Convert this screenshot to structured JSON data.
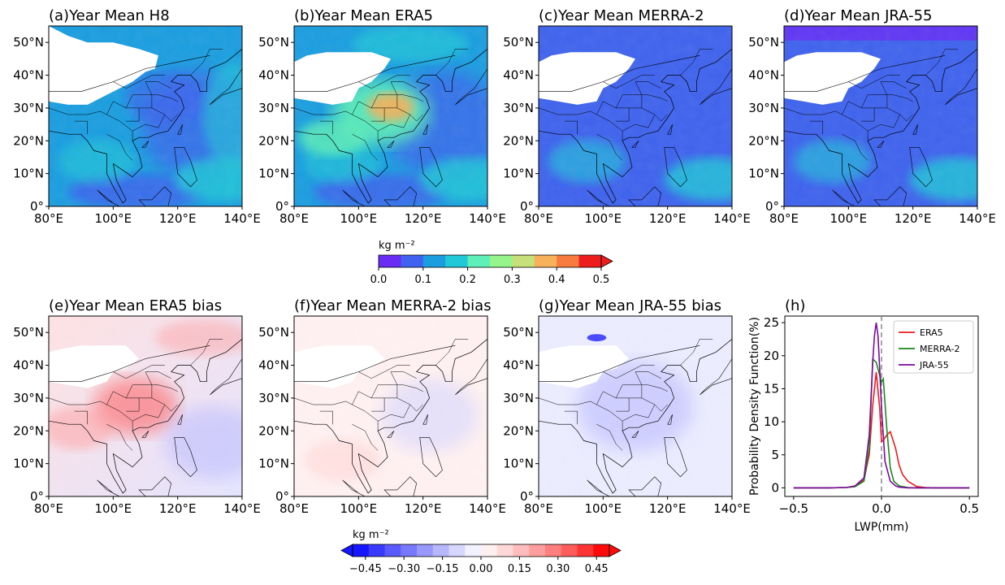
{
  "colors": {
    "lwp_levels": [
      "#6a2cf5",
      "#3f63ee",
      "#1b9ee0",
      "#22c8d8",
      "#5ef0b8",
      "#95f58c",
      "#c6e17a",
      "#f7b15a",
      "#f77a3e",
      "#ee1d1d"
    ],
    "bias_levels": [
      "#1616ff",
      "#3a3aff",
      "#5a5aff",
      "#7878ff",
      "#9898ff",
      "#b7b7ff",
      "#d6d6ff",
      "#f1f1ff",
      "#fff0f0",
      "#ffd8d8",
      "#ffbcbc",
      "#ff9e9e",
      "#ff7e7e",
      "#ff5c5c",
      "#ff3434",
      "#ff0a0a"
    ],
    "era5": "#ee1c1c",
    "merra2": "#1a8a1a",
    "jra55": "#7a0aa0"
  },
  "chart_data": [
    {
      "type": "heatmap",
      "panel": "a",
      "title": "(a)Year Mean H8",
      "xticks": [
        "80°E",
        "100°E",
        "120°E",
        "140°E"
      ],
      "yticks": [
        "0°",
        "10°N",
        "20°N",
        "30°N",
        "40°N",
        "50°N"
      ],
      "xlim": [
        80,
        140
      ],
      "ylim": [
        0,
        55
      ]
    },
    {
      "type": "heatmap",
      "panel": "b",
      "title": "(b)Year Mean ERA5",
      "xticks": [
        "80°E",
        "100°E",
        "120°E",
        "140°E"
      ],
      "yticks": [
        "0°",
        "10°N",
        "20°N",
        "30°N",
        "40°N",
        "50°N"
      ],
      "xlim": [
        80,
        140
      ],
      "ylim": [
        0,
        55
      ]
    },
    {
      "type": "heatmap",
      "panel": "c",
      "title": "(c)Year Mean MERRA-2",
      "xticks": [
        "80°E",
        "100°E",
        "120°E",
        "140°E"
      ],
      "yticks": [
        "0°",
        "10°N",
        "20°N",
        "30°N",
        "40°N",
        "50°N"
      ],
      "xlim": [
        80,
        140
      ],
      "ylim": [
        0,
        55
      ]
    },
    {
      "type": "heatmap",
      "panel": "d",
      "title": "(d)Year Mean JRA-55",
      "xticks": [
        "80°E",
        "100°E",
        "120°E",
        "140°E"
      ],
      "yticks": [
        "0°",
        "10°N",
        "20°N",
        "30°N",
        "40°N",
        "50°N"
      ],
      "xlim": [
        80,
        140
      ],
      "ylim": [
        0,
        55
      ]
    },
    {
      "type": "heatmap",
      "panel": "e",
      "title": "(e)Year Mean ERA5 bias",
      "xticks": [
        "80°E",
        "100°E",
        "120°E",
        "140°E"
      ],
      "yticks": [
        "0°",
        "10°N",
        "20°N",
        "30°N",
        "40°N",
        "50°N"
      ],
      "xlim": [
        80,
        140
      ],
      "ylim": [
        0,
        55
      ]
    },
    {
      "type": "heatmap",
      "panel": "f",
      "title": "(f)Year Mean MERRA-2 bias",
      "xticks": [
        "80°E",
        "100°E",
        "120°E",
        "140°E"
      ],
      "yticks": [
        "0°",
        "10°N",
        "20°N",
        "30°N",
        "40°N",
        "50°N"
      ],
      "xlim": [
        80,
        140
      ],
      "ylim": [
        0,
        55
      ]
    },
    {
      "type": "heatmap",
      "panel": "g",
      "title": "(g)Year Mean JRA-55 bias",
      "xticks": [
        "80°E",
        "100°E",
        "120°E",
        "140°E"
      ],
      "yticks": [
        "0°",
        "10°N",
        "20°N",
        "30°N",
        "40°N",
        "50°N"
      ],
      "xlim": [
        80,
        140
      ],
      "ylim": [
        0,
        55
      ]
    },
    {
      "type": "line",
      "panel": "h",
      "title": "(h)",
      "xlabel": "LWP(mm)",
      "ylabel": "Probability Density Function(%)",
      "xlim": [
        -0.55,
        0.55
      ],
      "ylim": [
        -1.3,
        26
      ],
      "xticks": [
        -0.5,
        0.0,
        0.5
      ],
      "xtick_labels": [
        "−0.5",
        "0.0",
        "0.5"
      ],
      "yticks": [
        0,
        5,
        10,
        15,
        20,
        25
      ],
      "ytick_labels": [
        "0",
        "5",
        "10",
        "15",
        "20",
        "25"
      ],
      "reference_line_x": 0.0,
      "legend": "top-right",
      "series": [
        {
          "name": "ERA5",
          "x": [
            -0.5,
            -0.3,
            -0.2,
            -0.15,
            -0.1,
            -0.07,
            -0.05,
            -0.03,
            -0.01,
            0.0,
            0.01,
            0.03,
            0.05,
            0.08,
            0.1,
            0.12,
            0.15,
            0.2,
            0.25,
            0.3,
            0.5
          ],
          "y": [
            0,
            0,
            0.05,
            0.2,
            1.2,
            5,
            12.5,
            17.5,
            12,
            7,
            7.2,
            8,
            8.5,
            6,
            3.5,
            2,
            1,
            0.2,
            0.05,
            0,
            0
          ]
        },
        {
          "name": "MERRA-2",
          "x": [
            -0.5,
            -0.3,
            -0.2,
            -0.15,
            -0.1,
            -0.07,
            -0.05,
            -0.03,
            -0.01,
            0.0,
            0.01,
            0.03,
            0.05,
            0.07,
            0.1,
            0.15,
            0.2,
            0.3,
            0.5
          ],
          "y": [
            0,
            0,
            0.05,
            0.2,
            1,
            6,
            19.5,
            19,
            17,
            16,
            16.5,
            9,
            3,
            1,
            0.3,
            0.05,
            0,
            0,
            0
          ]
        },
        {
          "name": "JRA-55",
          "x": [
            -0.5,
            -0.3,
            -0.2,
            -0.15,
            -0.1,
            -0.07,
            -0.05,
            -0.04,
            -0.03,
            -0.02,
            -0.01,
            0.0,
            0.02,
            0.05,
            0.08,
            0.1,
            0.15,
            0.3,
            0.5
          ],
          "y": [
            0,
            0,
            0.05,
            0.3,
            1.5,
            8,
            19,
            23,
            25,
            23,
            18,
            12,
            4,
            1,
            0.3,
            0.1,
            0,
            0,
            0
          ]
        }
      ]
    },
    {
      "type": "colorbar",
      "name": "lwp-colorbar",
      "label": "kg m⁻²",
      "ticks": [
        "0.0",
        "0.1",
        "0.2",
        "0.3",
        "0.4",
        "0.5"
      ],
      "range": [
        0,
        0.5
      ],
      "extend": "max"
    },
    {
      "type": "colorbar",
      "name": "bias-colorbar",
      "label": "kg m⁻²",
      "ticks": [
        "−0.45",
        "−0.30",
        "−0.15",
        "0.00",
        "0.15",
        "0.30",
        "0.45"
      ],
      "range": [
        -0.5,
        0.5
      ],
      "extend": "both"
    }
  ]
}
